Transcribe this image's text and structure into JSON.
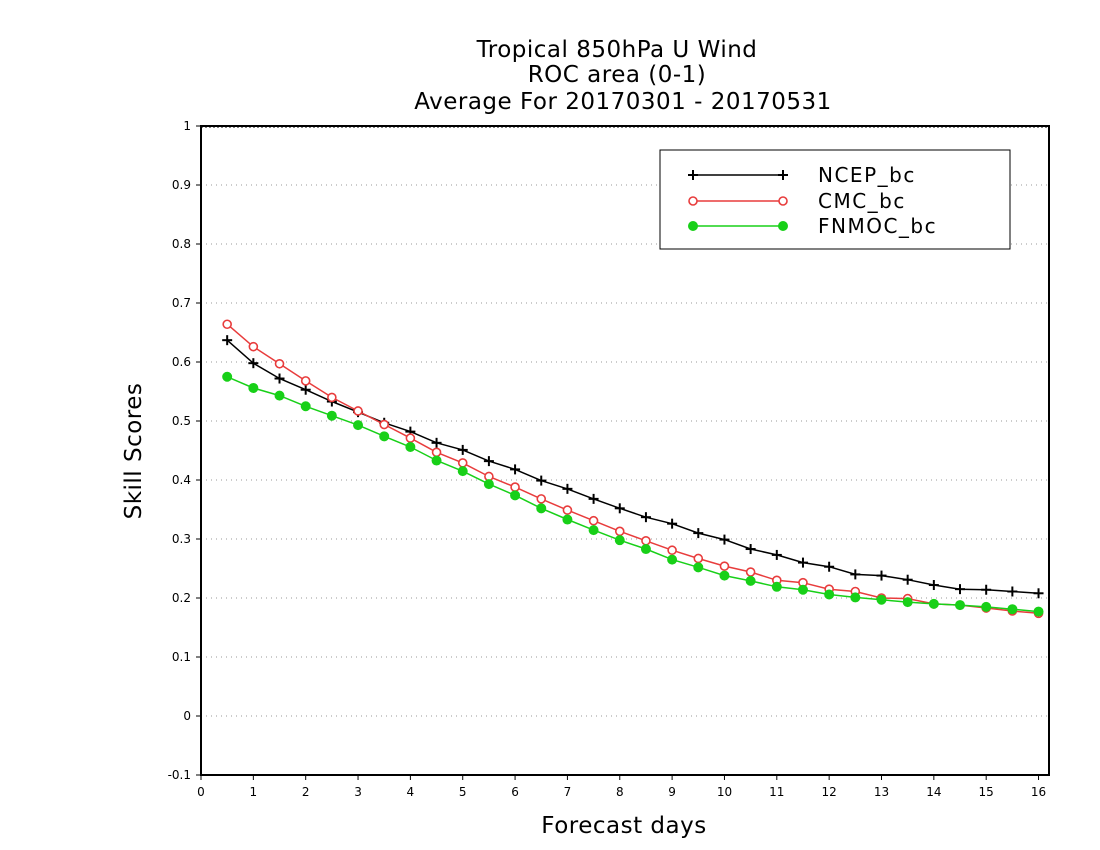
{
  "chart_data": {
    "type": "line",
    "title_lines": [
      "Tropical 850hPa U Wind",
      "ROC area (0-1)",
      "Average For 20170301 - 20170531"
    ],
    "xlabel": "Forecast days",
    "ylabel": "Skill Scores",
    "xlim": [
      0,
      16.2
    ],
    "ylim": [
      -0.1,
      1
    ],
    "x_ticks": [
      "0",
      "1",
      "2",
      "3",
      "4",
      "5",
      "6",
      "7",
      "8",
      "9",
      "10",
      "11",
      "12",
      "13",
      "14",
      "15",
      "16"
    ],
    "y_ticks": [
      "-0.1",
      "0",
      "0.1",
      "0.2",
      "0.3",
      "0.4",
      "0.5",
      "0.6",
      "0.7",
      "0.8",
      "0.9",
      "1"
    ],
    "grid": "horizontal dotted",
    "legend_position": "top-right",
    "x": [
      0.5,
      1,
      1.5,
      2,
      2.5,
      3,
      3.5,
      4,
      4.5,
      5,
      5.5,
      6,
      6.5,
      7,
      7.5,
      8,
      8.5,
      9,
      9.5,
      10,
      10.5,
      11,
      11.5,
      12,
      12.5,
      13,
      13.5,
      14,
      14.5,
      15,
      15.5,
      16
    ],
    "series": [
      {
        "name": "NCEP_bc",
        "color": "#000000",
        "marker": "plus",
        "values": [
          0.637,
          0.598,
          0.572,
          0.553,
          0.533,
          0.515,
          0.497,
          0.482,
          0.463,
          0.451,
          0.432,
          0.418,
          0.399,
          0.385,
          0.368,
          0.352,
          0.337,
          0.326,
          0.31,
          0.299,
          0.283,
          0.273,
          0.26,
          0.253,
          0.24,
          0.238,
          0.231,
          0.222,
          0.215,
          0.214,
          0.211,
          0.208
        ]
      },
      {
        "name": "CMC_bc",
        "color": "#e83c3c",
        "marker": "open-circle",
        "values": [
          0.664,
          0.626,
          0.597,
          0.568,
          0.54,
          0.517,
          0.494,
          0.471,
          0.447,
          0.429,
          0.406,
          0.388,
          0.368,
          0.349,
          0.331,
          0.313,
          0.297,
          0.281,
          0.267,
          0.254,
          0.244,
          0.23,
          0.226,
          0.215,
          0.211,
          0.2,
          0.199,
          0.19,
          0.188,
          0.183,
          0.178,
          0.174
        ]
      },
      {
        "name": "FNMOC_bc",
        "color": "#18d018",
        "marker": "filled-circle",
        "values": [
          0.575,
          0.556,
          0.543,
          0.525,
          0.509,
          0.493,
          0.474,
          0.456,
          0.433,
          0.415,
          0.393,
          0.374,
          0.352,
          0.333,
          0.315,
          0.298,
          0.283,
          0.265,
          0.252,
          0.238,
          0.229,
          0.219,
          0.214,
          0.206,
          0.201,
          0.197,
          0.193,
          0.19,
          0.188,
          0.185,
          0.181,
          0.177
        ]
      }
    ]
  }
}
